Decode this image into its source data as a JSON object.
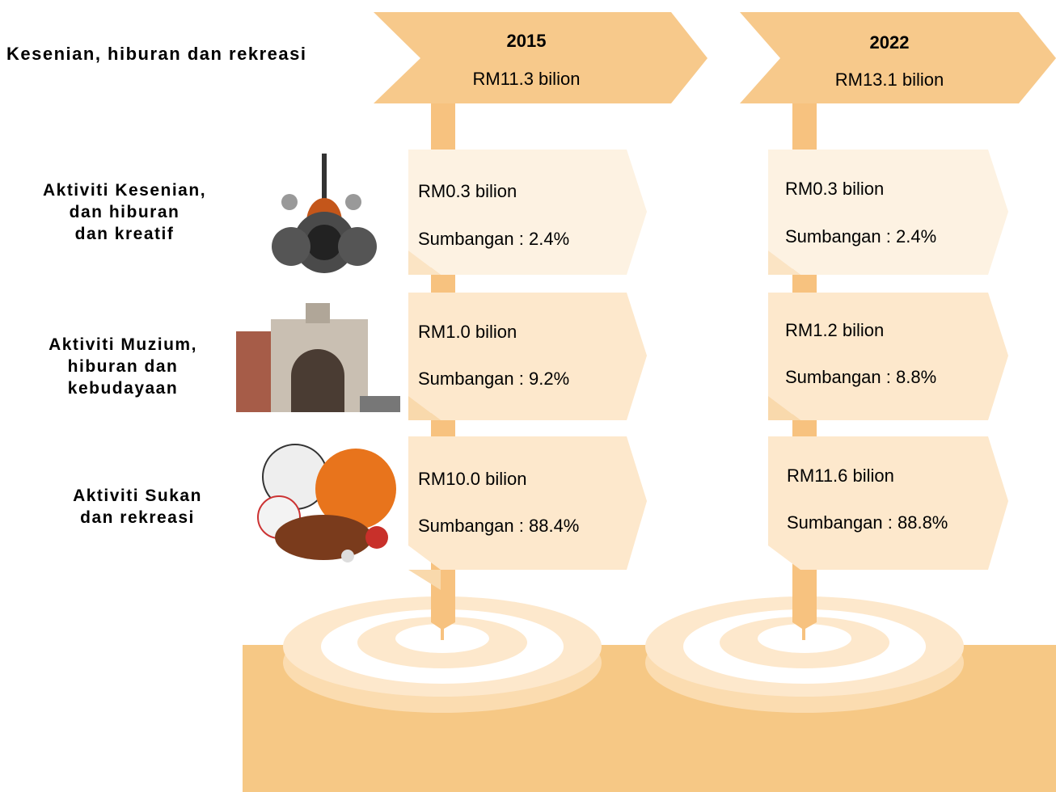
{
  "title": "Kesenian, hiburan dan rekreasi",
  "categories": [
    "Aktiviti Kesenian,\ndan hiburan\ndan kreatif",
    "Aktiviti Muzium,\nhiburan dan\nkebudayaan",
    "Aktiviti Sukan\ndan rekreasi"
  ],
  "years": [
    {
      "year": "2015",
      "total": "RM11.3 bilion",
      "rows": [
        {
          "value": "RM0.3 bilion",
          "share": "Sumbangan : 2.4%"
        },
        {
          "value": "RM1.0 bilion",
          "share": "Sumbangan : 9.2%"
        },
        {
          "value": "RM10.0 bilion",
          "share": "Sumbangan : 88.4%"
        }
      ]
    },
    {
      "year": "2022",
      "total": "RM13.1 bilion",
      "rows": [
        {
          "value": "RM0.3 bilion",
          "share": "Sumbangan : 2.4%"
        },
        {
          "value": "RM1.2 bilion",
          "share": "Sumbangan : 8.8%"
        },
        {
          "value": "RM11.6 bilion",
          "share": "Sumbangan : 88.8%"
        }
      ]
    }
  ]
}
